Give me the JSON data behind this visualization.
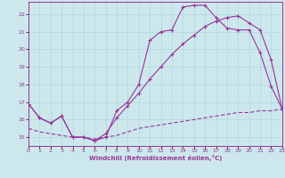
{
  "xlabel": "Windchill (Refroidissement éolien,°C)",
  "bg_color": "#cce8ec",
  "line_color": "#993399",
  "grid_color": "#b0d8dc",
  "xlim": [
    0,
    23
  ],
  "ylim": [
    14.5,
    22.7
  ],
  "xticks": [
    0,
    1,
    2,
    3,
    4,
    5,
    6,
    7,
    8,
    9,
    10,
    11,
    12,
    13,
    14,
    15,
    16,
    17,
    18,
    19,
    20,
    21,
    22,
    23
  ],
  "yticks": [
    15,
    16,
    17,
    18,
    19,
    20,
    21,
    22
  ],
  "s1_x": [
    0,
    1,
    2,
    3,
    4,
    5,
    6,
    7,
    8,
    9,
    10,
    11,
    12,
    13,
    14,
    15,
    16,
    17,
    18,
    19,
    20,
    21,
    22,
    23
  ],
  "s1_y": [
    16.9,
    16.1,
    15.8,
    16.2,
    15.0,
    15.0,
    14.8,
    15.0,
    16.5,
    17.0,
    18.0,
    20.5,
    21.0,
    21.1,
    22.4,
    22.5,
    22.5,
    21.8,
    21.2,
    21.1,
    21.1,
    19.8,
    17.9,
    16.6
  ],
  "s2_x": [
    0,
    1,
    2,
    3,
    4,
    5,
    6,
    7,
    8,
    9,
    10,
    11,
    12,
    13,
    14,
    15,
    16,
    17,
    18,
    19,
    20,
    21,
    22,
    23
  ],
  "s2_y": [
    16.9,
    16.1,
    15.8,
    16.2,
    15.0,
    15.0,
    14.8,
    15.2,
    16.1,
    16.8,
    17.5,
    18.3,
    19.0,
    19.7,
    20.3,
    20.8,
    21.3,
    21.6,
    21.8,
    21.9,
    21.5,
    21.1,
    19.4,
    16.6
  ],
  "s3_x": [
    0,
    1,
    2,
    3,
    4,
    5,
    6,
    7,
    8,
    9,
    10,
    11,
    12,
    13,
    14,
    15,
    16,
    17,
    18,
    19,
    20,
    21,
    22,
    23
  ],
  "s3_y": [
    15.5,
    15.3,
    15.2,
    15.1,
    15.0,
    15.0,
    14.9,
    15.0,
    15.1,
    15.3,
    15.5,
    15.6,
    15.7,
    15.8,
    15.9,
    16.0,
    16.1,
    16.2,
    16.3,
    16.4,
    16.4,
    16.5,
    16.5,
    16.6
  ]
}
